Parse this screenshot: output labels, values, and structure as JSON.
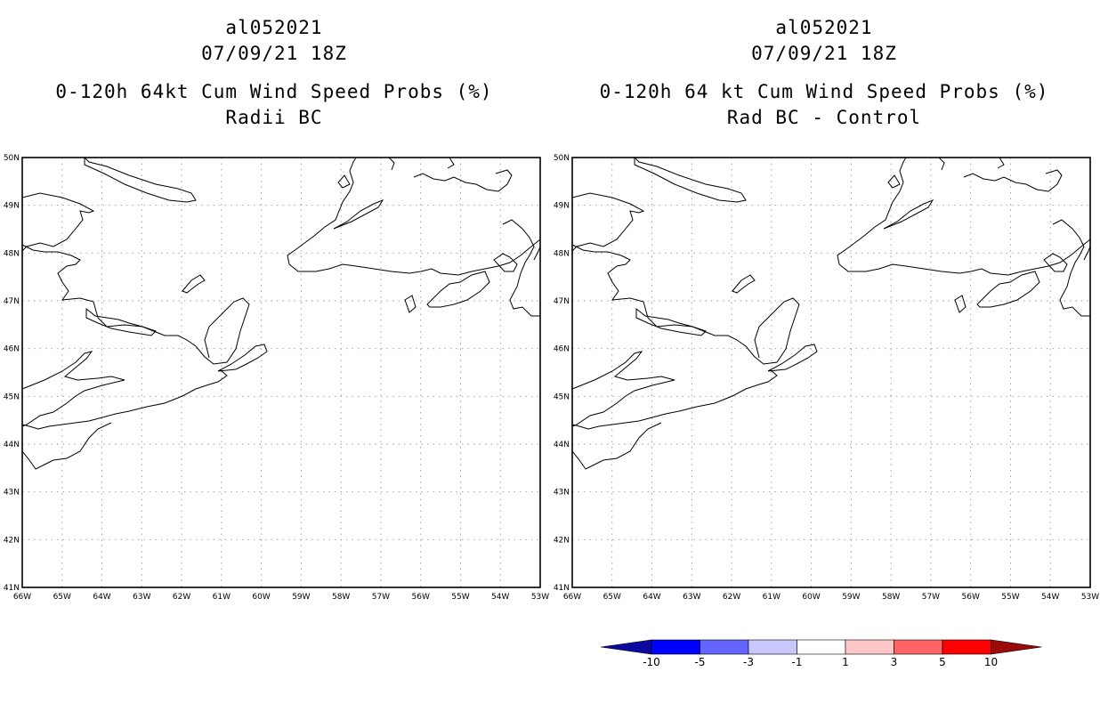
{
  "left_panel": {
    "title_line1": "al052021",
    "title_line2": "07/09/21 18Z",
    "title_line3": "0-120h 64kt Cum Wind Speed Probs (%)",
    "title_line4": "Radii BC"
  },
  "right_panel": {
    "title_line1": "al052021",
    "title_line2": "07/09/21 18Z",
    "title_line3": "0-120h 64 kt Cum Wind Speed Probs (%)",
    "title_line4": "Rad BC - Control"
  },
  "map": {
    "lat_labels": [
      "50N",
      "49N",
      "48N",
      "47N",
      "46N",
      "45N",
      "44N",
      "43N",
      "42N",
      "41N"
    ],
    "lon_labels": [
      "66W",
      "65W",
      "64W",
      "63W",
      "62W",
      "61W",
      "60W",
      "59W",
      "58W",
      "57W",
      "56W",
      "55W",
      "54W",
      "53W"
    ],
    "grid": "dotted",
    "border_color": "#000000"
  },
  "colorbar": {
    "labels": [
      "-10",
      "-5",
      "-3",
      "-1",
      "1",
      "3",
      "5",
      "10"
    ],
    "colors": [
      "#0a0a9e",
      "#0000ff",
      "#6464ff",
      "#c8c8ff",
      "#ffffff",
      "#ffc8c8",
      "#ff6464",
      "#ff0000",
      "#9e0a0a"
    ]
  }
}
